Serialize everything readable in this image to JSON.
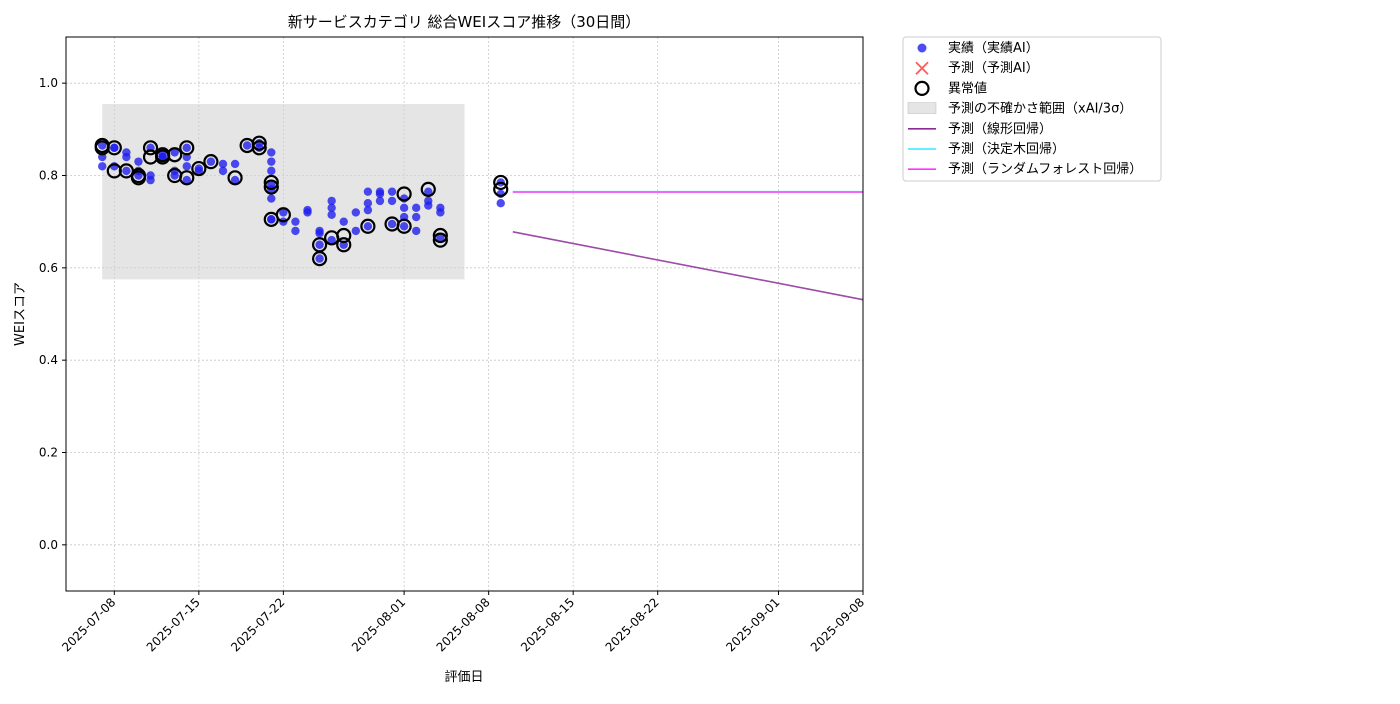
{
  "chart_data": {
    "type": "scatter",
    "title": "新サービスカテゴリ 総合WEIスコア推移（30日間）",
    "xlabel": "評価日",
    "ylabel": "WEIスコア",
    "xlim": [
      "2025-07-04",
      "2025-09-08"
    ],
    "ylim": [
      -0.1,
      1.1
    ],
    "yticks": [
      0.0,
      0.2,
      0.4,
      0.6,
      0.8,
      1.0
    ],
    "ytick_labels": [
      "0.0",
      "0.2",
      "0.4",
      "0.6",
      "0.8",
      "1.0"
    ],
    "xticks": [
      "2025-07-08",
      "2025-07-15",
      "2025-07-22",
      "2025-08-01",
      "2025-08-08",
      "2025-08-15",
      "2025-08-22",
      "2025-09-01",
      "2025-09-08"
    ],
    "grid": true,
    "legend_position": "outside-top-right",
    "colors": {
      "actual": "#1f1fee",
      "predicted": "#ff3030",
      "anomaly": "#000000",
      "band": "#cfcfcf",
      "linear": "#8b2c96",
      "tree": "#33e8ff",
      "forest": "#ff33ff",
      "grid": "#c8c8c8"
    },
    "legend": [
      {
        "key": "actual",
        "label": "実績（実績AI）",
        "kind": "dot"
      },
      {
        "key": "predicted",
        "label": "予測（予測AI）",
        "kind": "cross"
      },
      {
        "key": "anomaly",
        "label": "異常値",
        "kind": "ring"
      },
      {
        "key": "band",
        "label": "予測の不確かさ範囲（xAI/3σ）",
        "kind": "patch"
      },
      {
        "key": "linear",
        "label": "予測（線形回帰）",
        "kind": "line"
      },
      {
        "key": "tree",
        "label": "予測（決定木回帰）",
        "kind": "line"
      },
      {
        "key": "forest",
        "label": "予測（ランダムフォレスト回帰）",
        "kind": "line"
      }
    ],
    "uncertainty_band": {
      "x": [
        "2025-07-07",
        "2025-08-06"
      ],
      "y": [
        0.575,
        0.955
      ]
    },
    "series": [
      {
        "name": "実績（実績AI）",
        "points": [
          [
            "2025-07-07",
            0.84
          ],
          [
            "2025-07-07",
            0.82
          ],
          [
            "2025-07-07",
            0.865
          ],
          [
            "2025-07-08",
            0.86
          ],
          [
            "2025-07-08",
            0.82
          ],
          [
            "2025-07-08",
            0.86
          ],
          [
            "2025-07-09",
            0.84
          ],
          [
            "2025-07-09",
            0.81
          ],
          [
            "2025-07-09",
            0.85
          ],
          [
            "2025-07-10",
            0.83
          ],
          [
            "2025-07-10",
            0.8
          ],
          [
            "2025-07-10",
            0.81
          ],
          [
            "2025-07-11",
            0.8
          ],
          [
            "2025-07-11",
            0.79
          ],
          [
            "2025-07-11",
            0.86
          ],
          [
            "2025-07-12",
            0.84
          ],
          [
            "2025-07-12",
            0.84
          ],
          [
            "2025-07-12",
            0.845
          ],
          [
            "2025-07-13",
            0.85
          ],
          [
            "2025-07-13",
            0.8
          ],
          [
            "2025-07-13",
            0.81
          ],
          [
            "2025-07-14",
            0.86
          ],
          [
            "2025-07-14",
            0.84
          ],
          [
            "2025-07-14",
            0.79
          ],
          [
            "2025-07-14",
            0.82
          ],
          [
            "2025-07-15",
            0.81
          ],
          [
            "2025-07-15",
            0.815
          ],
          [
            "2025-07-16",
            0.83
          ],
          [
            "2025-07-17",
            0.825
          ],
          [
            "2025-07-17",
            0.81
          ],
          [
            "2025-07-18",
            0.79
          ],
          [
            "2025-07-18",
            0.825
          ],
          [
            "2025-07-19",
            0.865
          ],
          [
            "2025-07-20",
            0.87
          ],
          [
            "2025-07-20",
            0.86
          ],
          [
            "2025-07-21",
            0.85
          ],
          [
            "2025-07-21",
            0.83
          ],
          [
            "2025-07-21",
            0.81
          ],
          [
            "2025-07-21",
            0.78
          ],
          [
            "2025-07-21",
            0.77
          ],
          [
            "2025-07-21",
            0.75
          ],
          [
            "2025-07-21",
            0.705
          ],
          [
            "2025-07-21",
            0.705
          ],
          [
            "2025-07-22",
            0.72
          ],
          [
            "2025-07-22",
            0.7
          ],
          [
            "2025-07-23",
            0.7
          ],
          [
            "2025-07-23",
            0.68
          ],
          [
            "2025-07-24",
            0.72
          ],
          [
            "2025-07-24",
            0.725
          ],
          [
            "2025-07-25",
            0.68
          ],
          [
            "2025-07-25",
            0.65
          ],
          [
            "2025-07-25",
            0.62
          ],
          [
            "2025-07-25",
            0.675
          ],
          [
            "2025-07-26",
            0.715
          ],
          [
            "2025-07-26",
            0.745
          ],
          [
            "2025-07-26",
            0.73
          ],
          [
            "2025-07-26",
            0.66
          ],
          [
            "2025-07-27",
            0.7
          ],
          [
            "2025-07-27",
            0.65
          ],
          [
            "2025-07-28",
            0.72
          ],
          [
            "2025-07-28",
            0.68
          ],
          [
            "2025-07-29",
            0.74
          ],
          [
            "2025-07-29",
            0.725
          ],
          [
            "2025-07-29",
            0.765
          ],
          [
            "2025-07-29",
            0.69
          ],
          [
            "2025-07-30",
            0.765
          ],
          [
            "2025-07-30",
            0.745
          ],
          [
            "2025-07-30",
            0.76
          ],
          [
            "2025-07-31",
            0.745
          ],
          [
            "2025-07-31",
            0.765
          ],
          [
            "2025-07-31",
            0.695
          ],
          [
            "2025-08-01",
            0.75
          ],
          [
            "2025-08-01",
            0.73
          ],
          [
            "2025-08-01",
            0.71
          ],
          [
            "2025-08-01",
            0.69
          ],
          [
            "2025-08-02",
            0.71
          ],
          [
            "2025-08-02",
            0.68
          ],
          [
            "2025-08-02",
            0.73
          ],
          [
            "2025-08-03",
            0.765
          ],
          [
            "2025-08-03",
            0.735
          ],
          [
            "2025-08-03",
            0.745
          ],
          [
            "2025-08-04",
            0.72
          ],
          [
            "2025-08-04",
            0.73
          ],
          [
            "2025-08-04",
            0.665
          ],
          [
            "2025-08-09",
            0.785
          ],
          [
            "2025-08-09",
            0.76
          ],
          [
            "2025-08-09",
            0.74
          ]
        ]
      },
      {
        "name": "異常値",
        "points": [
          [
            "2025-07-07",
            0.865
          ],
          [
            "2025-07-07",
            0.86
          ],
          [
            "2025-07-08",
            0.86
          ],
          [
            "2025-07-08",
            0.81
          ],
          [
            "2025-07-09",
            0.81
          ],
          [
            "2025-07-10",
            0.8
          ],
          [
            "2025-07-10",
            0.795
          ],
          [
            "2025-07-11",
            0.86
          ],
          [
            "2025-07-11",
            0.84
          ],
          [
            "2025-07-12",
            0.84
          ],
          [
            "2025-07-12",
            0.845
          ],
          [
            "2025-07-13",
            0.8
          ],
          [
            "2025-07-13",
            0.845
          ],
          [
            "2025-07-14",
            0.86
          ],
          [
            "2025-07-14",
            0.795
          ],
          [
            "2025-07-15",
            0.815
          ],
          [
            "2025-07-16",
            0.83
          ],
          [
            "2025-07-18",
            0.795
          ],
          [
            "2025-07-19",
            0.865
          ],
          [
            "2025-07-20",
            0.87
          ],
          [
            "2025-07-20",
            0.86
          ],
          [
            "2025-07-21",
            0.705
          ],
          [
            "2025-07-21",
            0.775
          ],
          [
            "2025-07-21",
            0.785
          ],
          [
            "2025-07-22",
            0.715
          ],
          [
            "2025-07-25",
            0.65
          ],
          [
            "2025-07-25",
            0.62
          ],
          [
            "2025-07-26",
            0.665
          ],
          [
            "2025-07-27",
            0.67
          ],
          [
            "2025-07-27",
            0.65
          ],
          [
            "2025-07-29",
            0.69
          ],
          [
            "2025-07-31",
            0.695
          ],
          [
            "2025-08-01",
            0.76
          ],
          [
            "2025-08-01",
            0.69
          ],
          [
            "2025-08-03",
            0.77
          ],
          [
            "2025-08-04",
            0.66
          ],
          [
            "2025-08-04",
            0.67
          ],
          [
            "2025-08-09",
            0.785
          ],
          [
            "2025-08-09",
            0.77
          ]
        ]
      },
      {
        "name": "予測（線形回帰）",
        "line": [
          [
            "2025-08-10",
            0.678
          ],
          [
            "2025-09-08",
            0.531
          ]
        ]
      },
      {
        "name": "予測（決定木回帰）",
        "line": [
          [
            "2025-08-10",
            0.765
          ],
          [
            "2025-09-08",
            0.765
          ]
        ]
      },
      {
        "name": "予測（ランダムフォレスト回帰）",
        "line": [
          [
            "2025-08-10",
            0.764
          ],
          [
            "2025-09-08",
            0.764
          ]
        ]
      }
    ]
  }
}
